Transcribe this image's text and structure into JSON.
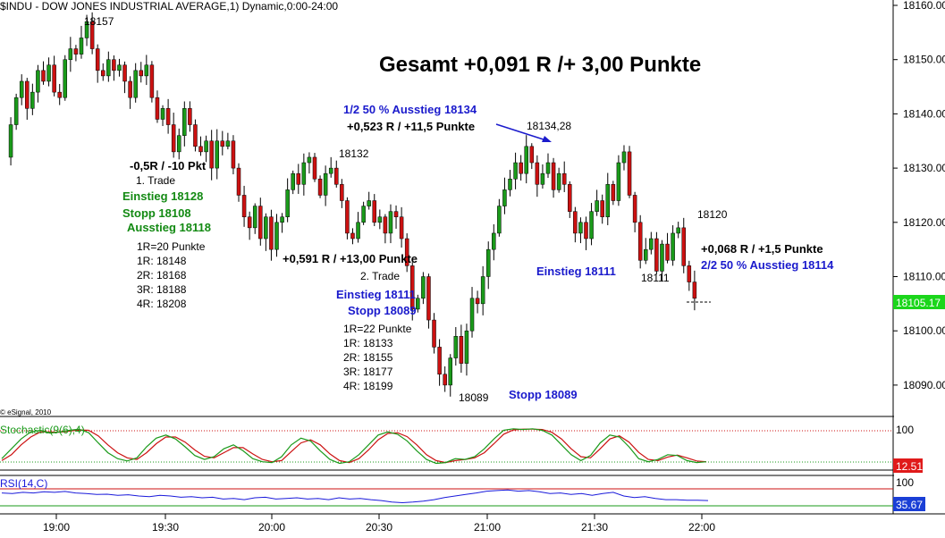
{
  "chart_title": "$INDU - DOW JONES INDUSTRIAL AVERAGE,1) Dynamic,0:00-24:00",
  "copyright": "© eSignal, 2010",
  "colors": {
    "up_candle": "#1a9a1a",
    "down_candle": "#cc1111",
    "stoch_k": "#1a9a1a",
    "stoch_d": "#cc1111",
    "rsi": "#1a1adb",
    "price_label_bg": "#1bd61b",
    "indicator_label_bg": "#e01a1a",
    "rsi_label_bg": "#1a3fd6",
    "annot_blue": "#1a1acc",
    "annot_green": "#138a13"
  },
  "annotations": {
    "gesamt": "Gesamt +0,091 R /+ 3,00 Punkte",
    "high_label": "18157",
    "t1_loss": "-0,5R / -10 Pkt",
    "t1_name": "1. Trade",
    "t1_einstieg": "Einstieg 18128",
    "t1_stopp": "Stopp 18108",
    "t1_ausstieg": "Ausstieg 18118",
    "t1_r": "1R=20 Punkte",
    "t1_r1": "1R: 18148",
    "t1_r2": "2R: 18168",
    "t1_r3": "3R: 18188",
    "t1_r4": "4R: 18208",
    "lbl_18132": "18132",
    "t2_result": "+0,591 R / +13,00 Punkte",
    "t2_name": "2. Trade",
    "t2_einstieg": "Einstieg 18111",
    "t2_stopp": "Stopp 18089",
    "t2_r": "1R=22 Punkte",
    "t2_r1": "1R: 18133",
    "t2_r2": "2R: 18155",
    "t2_r3": "3R: 18177",
    "t2_r4": "4R: 18199",
    "low_label": "18089",
    "stopp_18089": "Stopp 18089",
    "half_exit": "1/2 50 % Ausstieg 18134",
    "half_result": "+0,523 R / +11,5 Punkte",
    "peak_label": "18134,28",
    "einstieg_18111": "Einstieg 18111",
    "lbl_18111": "18111",
    "lbl_18120": "18120",
    "final_result": "+0,068 R / +1,5 Punkte",
    "final_exit": "2/2 50 % Ausstieg 18114"
  },
  "chart_data": {
    "type": "candlestick",
    "y_axis": {
      "ticks": [
        "18160.00",
        "18150.00",
        "18140.00",
        "18130.00",
        "18120.00",
        "18110.00",
        "18100.00",
        "18090.00"
      ],
      "ylim": [
        18085,
        18162
      ]
    },
    "last_price": "18105.17",
    "x_axis": {
      "ticks": [
        "19:00",
        "19:30",
        "20:00",
        "20:30",
        "21:00",
        "21:30",
        "22:00"
      ]
    },
    "ohlc_path": [
      18132,
      18138,
      18143,
      18146,
      18141,
      18144,
      18148,
      18146,
      18149,
      18144,
      18143,
      18150,
      18152,
      18151,
      18154,
      18157,
      18152,
      18148,
      18147,
      18150,
      18148,
      18149,
      18146,
      18143,
      18148,
      18147,
      18149,
      18143,
      18139,
      18141,
      18138,
      18133,
      18136,
      18141,
      18138,
      18134,
      18133,
      18135,
      18130,
      18135,
      18134,
      18135,
      18130,
      18125,
      18121,
      18119,
      18123,
      18117,
      18121,
      18115,
      18120,
      18121,
      18126,
      18129,
      18127,
      18131,
      18132,
      18128,
      18125,
      18129,
      18130,
      18127,
      18124,
      18118,
      18117,
      18120,
      18123,
      18124,
      18120,
      18121,
      18118,
      18122,
      18121,
      18117,
      18112,
      18104,
      18106,
      18110,
      18102,
      18097,
      18092,
      18090,
      18095,
      18099,
      18094,
      18100,
      18106,
      18105,
      18110,
      18115,
      18118,
      18123,
      18126,
      18128,
      18131,
      18129,
      18134,
      18131,
      18127,
      18129,
      18131,
      18126,
      18129,
      18127,
      18122,
      18118,
      18120,
      18117,
      18122,
      18124,
      18121,
      18127,
      18124,
      18131,
      18133,
      18125,
      18120,
      18113,
      18115,
      18117,
      18111,
      18116,
      18113,
      18118,
      18119,
      18112,
      18109,
      18106
    ],
    "stochastic": {
      "name": "Stochastic(9(6),4)",
      "k_last": "12.51",
      "levels": [
        "100"
      ],
      "k": [
        20,
        45,
        70,
        88,
        92,
        85,
        88,
        92,
        95,
        86,
        60,
        35,
        20,
        14,
        22,
        50,
        72,
        80,
        70,
        50,
        28,
        18,
        25,
        45,
        55,
        40,
        20,
        12,
        10,
        25,
        55,
        72,
        65,
        40,
        18,
        8,
        12,
        30,
        55,
        80,
        88,
        82,
        65,
        40,
        18,
        8,
        10,
        20,
        18,
        25,
        45,
        70,
        92,
        96,
        94,
        96,
        92,
        80,
        55,
        30,
        15,
        28,
        60,
        80,
        75,
        50,
        20,
        12,
        18,
        30,
        28,
        15,
        10,
        12
      ],
      "d": [
        15,
        30,
        55,
        75,
        88,
        88,
        87,
        90,
        93,
        92,
        78,
        55,
        35,
        22,
        18,
        35,
        58,
        75,
        75,
        62,
        42,
        26,
        22,
        35,
        48,
        48,
        32,
        18,
        12,
        15,
        38,
        60,
        68,
        55,
        32,
        15,
        10,
        20,
        42,
        68,
        84,
        86,
        76,
        55,
        30,
        15,
        10,
        15,
        18,
        22,
        35,
        58,
        82,
        93,
        95,
        95,
        94,
        87,
        70,
        45,
        25,
        22,
        45,
        70,
        78,
        62,
        36,
        18,
        15,
        24,
        29,
        22,
        14,
        12
      ]
    },
    "rsi": {
      "name": "RSI(14,C)",
      "last": "35.67",
      "levels": [
        "100"
      ],
      "values": [
        60,
        58,
        62,
        60,
        64,
        62,
        65,
        60,
        58,
        55,
        56,
        52,
        54,
        50,
        48,
        52,
        50,
        46,
        48,
        44,
        46,
        40,
        42,
        38,
        44,
        46,
        40,
        42,
        44,
        40,
        42,
        38,
        44,
        40,
        42,
        38,
        35,
        30,
        28,
        30,
        33,
        38,
        45,
        50,
        55,
        60,
        66,
        68,
        70,
        66,
        68,
        64,
        58,
        60,
        55,
        58,
        52,
        58,
        62,
        50,
        45,
        48,
        42,
        38,
        38,
        36,
        36,
        35
      ]
    }
  }
}
